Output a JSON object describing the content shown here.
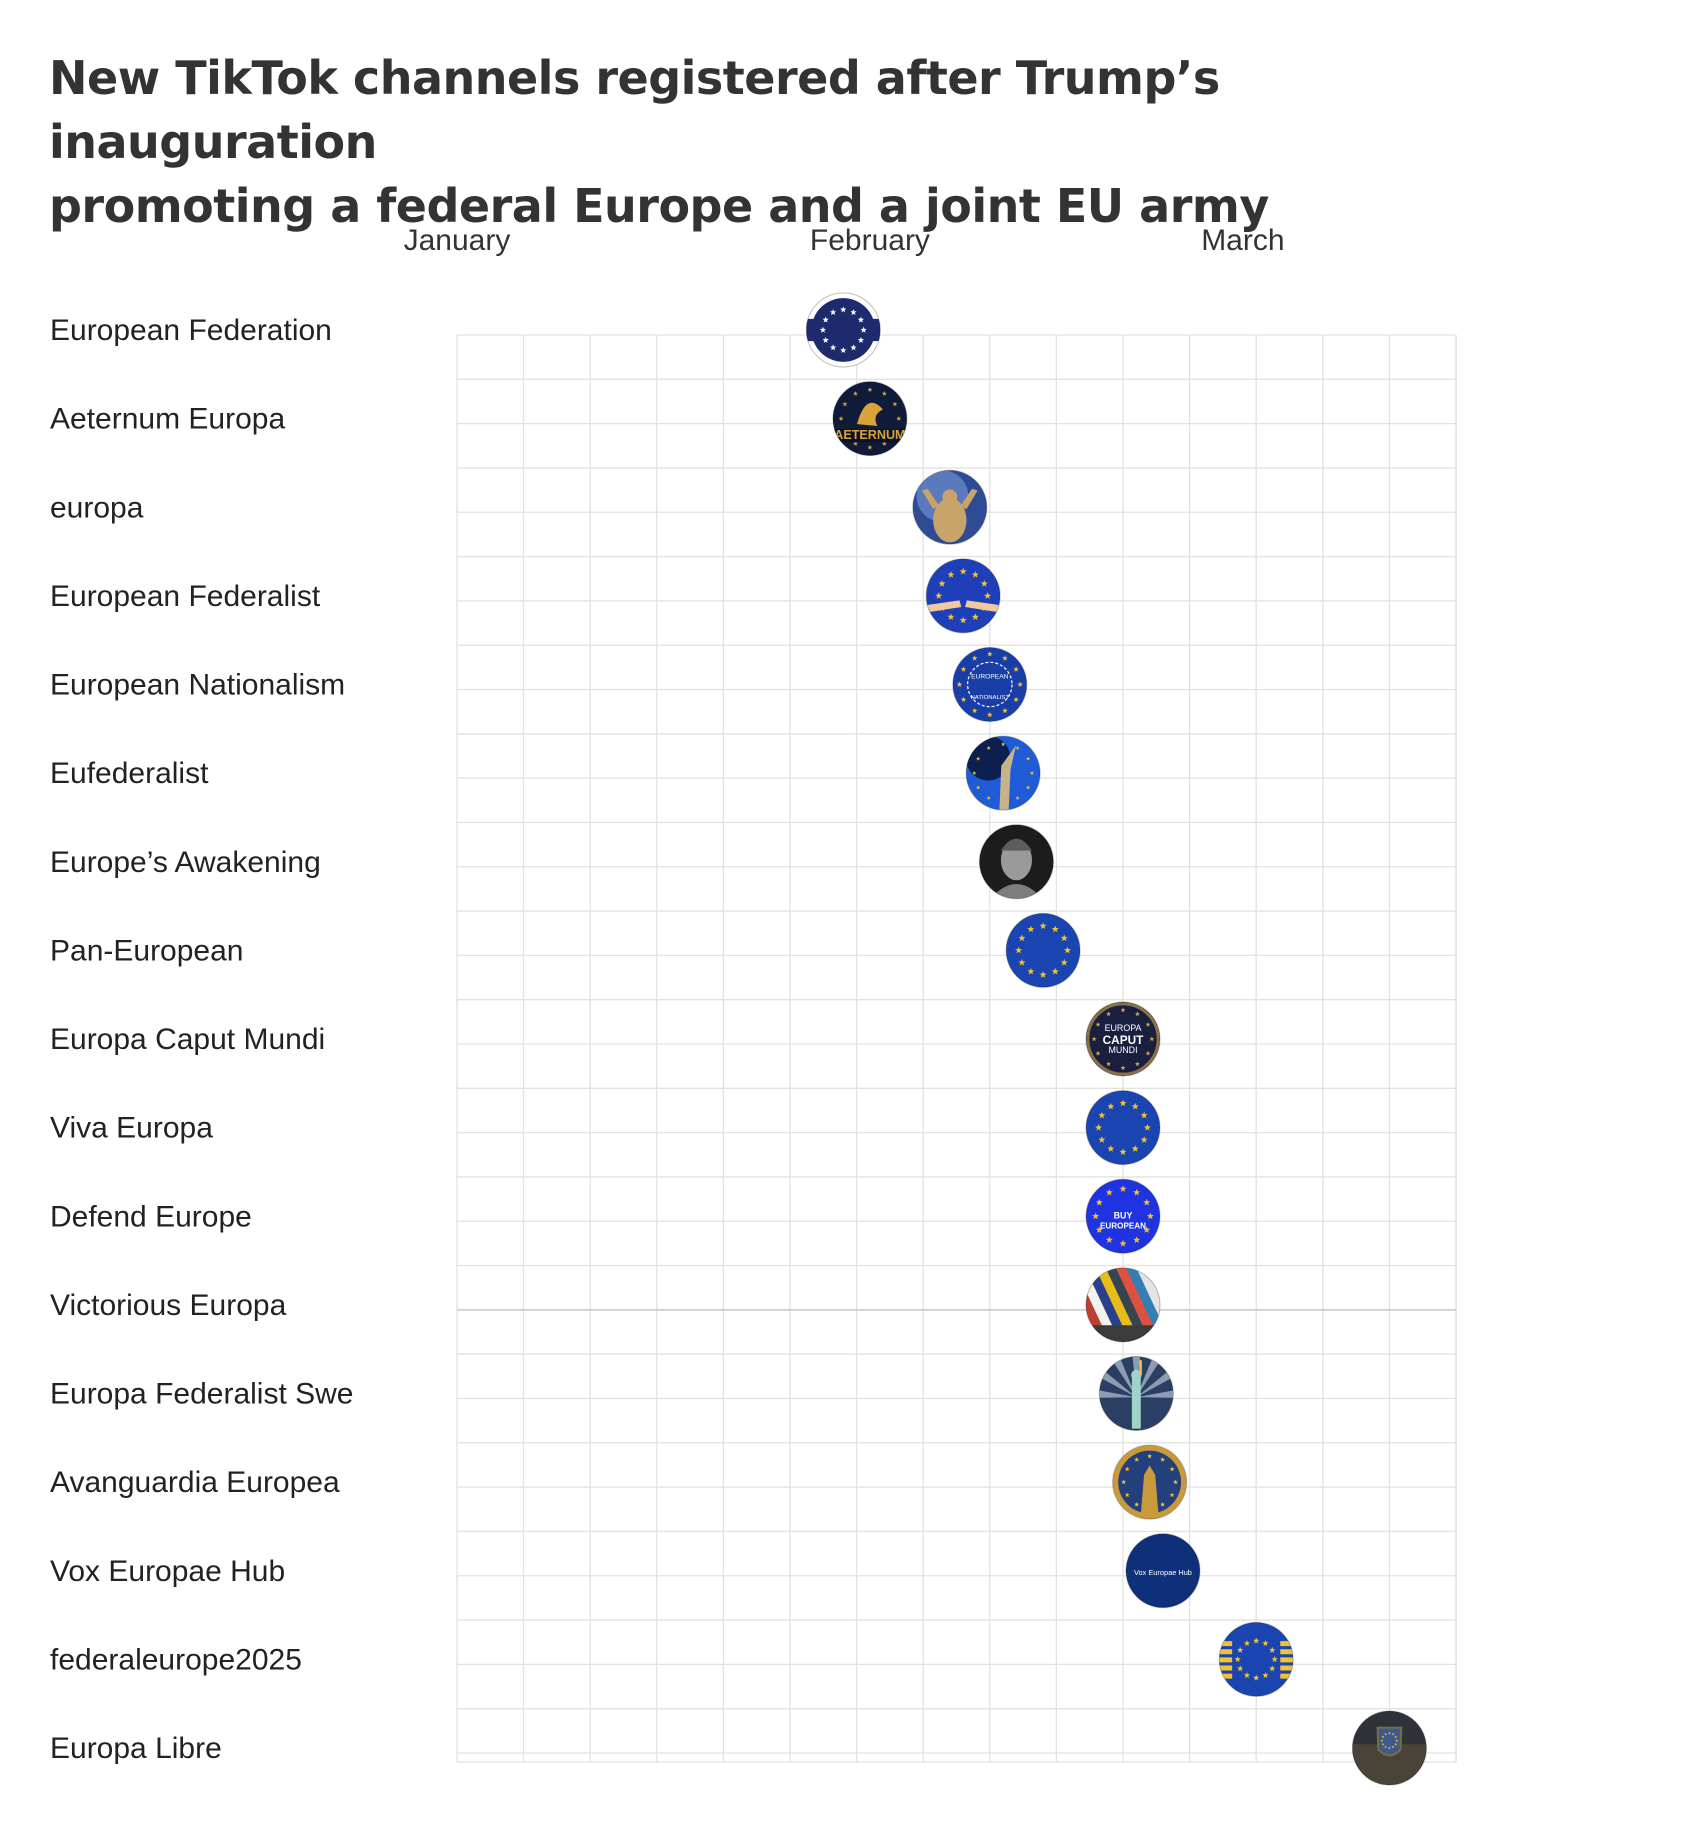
{
  "title": {
    "line1": "New TikTok channels registered after Trump’s inauguration",
    "line2": "promoting a federal Europe and a joint EU army"
  },
  "chart_data": {
    "type": "scatter",
    "title": "New TikTok channels registered after Trump’s inauguration promoting a federal Europe and a joint EU army",
    "x_axis": {
      "type": "date",
      "range": [
        "2025-01-01",
        "2025-03-17"
      ],
      "tick_labels": [
        "January",
        "February",
        "March"
      ],
      "tick_dates": [
        "2025-01-01",
        "2025-02-01",
        "2025-03-01"
      ]
    },
    "y_axis": {
      "type": "category"
    },
    "grid": true,
    "points": [
      {
        "channel": "European Federation",
        "date": "2025-01-30",
        "icon": "eu-flag-white-ring-icon",
        "colors": [
          "#1d2a6e",
          "#ffffff"
        ]
      },
      {
        "channel": "Aeternum Europa",
        "date": "2025-02-01",
        "icon": "golden-eagle-aeternum-logo-icon",
        "colors": [
          "#101b3a",
          "#d9a33a"
        ]
      },
      {
        "channel": "europa",
        "date": "2025-02-07",
        "icon": "muscular-figure-sky-icon",
        "colors": [
          "#2e4c94",
          "#c9a46a"
        ]
      },
      {
        "channel": "European Federalist",
        "date": "2025-02-08",
        "icon": "eu-flag-hands-icon",
        "colors": [
          "#1f3fb8",
          "#f2c230"
        ]
      },
      {
        "channel": "European Nationalism",
        "date": "2025-02-10",
        "icon": "eu-flag-european-nationalist-text-icon",
        "colors": [
          "#1a3ea8",
          "#f2c230"
        ]
      },
      {
        "channel": "Eufederalist",
        "date": "2025-02-11",
        "icon": "statue-blue-sky-icon",
        "colors": [
          "#1f5bd6",
          "#0c1f4f"
        ]
      },
      {
        "channel": "Europe’s Awakening",
        "date": "2025-02-12",
        "icon": "marble-bust-icon",
        "colors": [
          "#1c1c1c",
          "#9a9a9a"
        ]
      },
      {
        "channel": "Pan-European",
        "date": "2025-02-14",
        "icon": "eu-flag-icon",
        "colors": [
          "#1a44b0",
          "#f2c230"
        ]
      },
      {
        "channel": "Europa Caput Mundi",
        "date": "2025-02-20",
        "icon": "europa-caput-mundi-text-icon",
        "colors": [
          "#1a1f3f",
          "#d4a84a"
        ]
      },
      {
        "channel": "Viva Europa",
        "date": "2025-02-20",
        "icon": "eu-flag-icon",
        "colors": [
          "#1a44b0",
          "#f2c230"
        ]
      },
      {
        "channel": "Defend Europe",
        "date": "2025-02-20",
        "icon": "eu-flag-buy-european-text-icon",
        "colors": [
          "#1f33e0",
          "#f2c230"
        ]
      },
      {
        "channel": "Victorious Europa",
        "date": "2025-02-20",
        "icon": "flags-collage-icon",
        "colors": [
          "#8b7d6b",
          "#c0392b"
        ]
      },
      {
        "channel": "Europa Federalist Swe",
        "date": "2025-02-21",
        "icon": "statue-of-liberty-spotlight-icon",
        "colors": [
          "#2b3e63",
          "#f0c060"
        ]
      },
      {
        "channel": "Avanguardia Europea",
        "date": "2025-02-22",
        "icon": "golden-statue-blue-icon",
        "colors": [
          "#23407c",
          "#c99a3c"
        ]
      },
      {
        "channel": "Vox Europae Hub",
        "date": "2025-02-23",
        "icon": "vox-europae-hub-text-icon",
        "colors": [
          "#0e2f7a",
          "#ffffff"
        ]
      },
      {
        "channel": "federaleurope2025",
        "date": "2025-03-02",
        "icon": "eu-flag-gold-stripes-icon",
        "colors": [
          "#1a44b0",
          "#f2c230"
        ]
      },
      {
        "channel": "Europa Libre",
        "date": "2025-03-12",
        "icon": "spqr-emblem-dark-icon",
        "colors": [
          "#2f3238",
          "#7a6a4a"
        ]
      }
    ]
  }
}
